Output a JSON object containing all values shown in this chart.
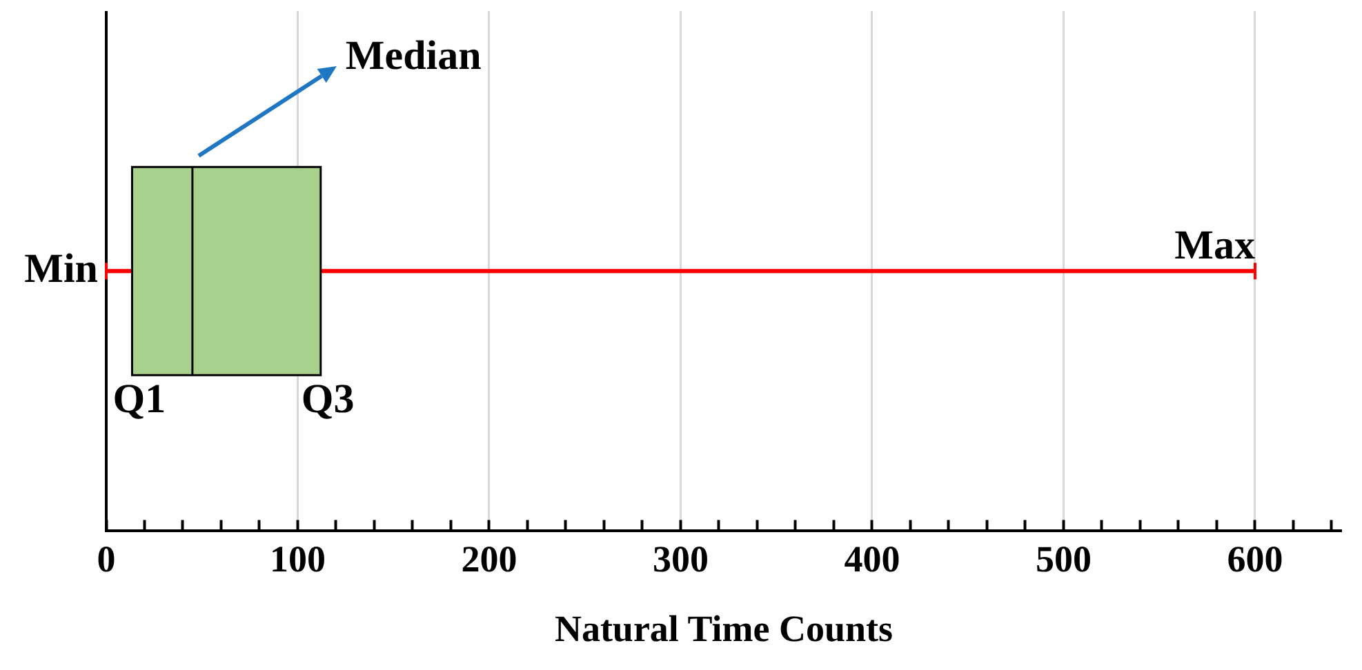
{
  "chart_data": {
    "type": "box",
    "orientation": "horizontal",
    "xlabel": "Natural Time Counts",
    "categories": [
      null
    ],
    "series": [
      {
        "color": "#a9d18e",
        "boxes": [
          {
            "low": 0,
            "q1": 13.5,
            "median": 45,
            "q3": 112,
            "high": 600
          }
        ]
      }
    ],
    "xlim": [
      0,
      645
    ],
    "xticks": [
      0,
      {
        "value": 20,
        "label": null
      },
      {
        "value": 40,
        "label": null
      },
      {
        "value": 60,
        "label": null
      },
      {
        "value": 80,
        "label": null
      },
      100,
      {
        "value": 120,
        "label": null
      },
      {
        "value": 140,
        "label": null
      },
      {
        "value": 160,
        "label": null
      },
      {
        "value": 180,
        "label": null
      },
      200,
      {
        "value": 220,
        "label": null
      },
      {
        "value": 240,
        "label": null
      },
      {
        "value": 260,
        "label": null
      },
      {
        "value": 280,
        "label": null
      },
      300,
      {
        "value": 320,
        "label": null
      },
      {
        "value": 340,
        "label": null
      },
      {
        "value": 360,
        "label": null
      },
      {
        "value": 380,
        "label": null
      },
      400,
      {
        "value": 420,
        "label": null
      },
      {
        "value": 440,
        "label": null
      },
      {
        "value": 460,
        "label": null
      },
      {
        "value": 480,
        "label": null
      },
      500,
      {
        "value": 520,
        "label": null
      },
      {
        "value": 540,
        "label": null
      },
      {
        "value": 560,
        "label": null
      },
      {
        "value": 580,
        "label": null
      },
      600,
      {
        "value": 620,
        "label": null
      },
      {
        "value": 640,
        "label": null
      }
    ],
    "grid": "x",
    "legend": false,
    "tick_labels": "x",
    "annotations": [
      "Min",
      "Max",
      "Q1",
      "Q3",
      "Median"
    ]
  }
}
